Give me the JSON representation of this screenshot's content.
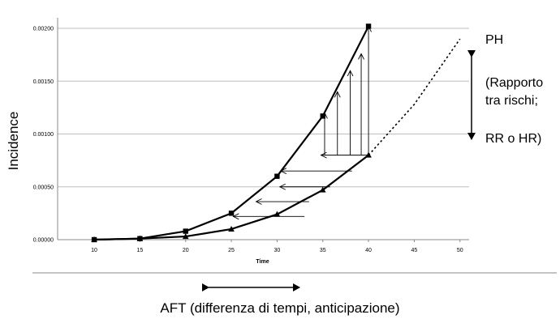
{
  "chart_data": {
    "type": "line",
    "xlabel": "Time",
    "ylabel": "Incidence",
    "x": [
      10,
      15,
      20,
      25,
      30,
      35,
      40
    ],
    "xticks": [
      10,
      15,
      20,
      25,
      30,
      35,
      40,
      45,
      50
    ],
    "yticks": [
      "0.00000",
      "0.00050",
      "0.00100",
      "0.00150",
      "0.00200"
    ],
    "xlim": [
      6,
      51
    ],
    "ylim": [
      0,
      0.0021
    ],
    "grid": true,
    "series": [
      {
        "marker": "square",
        "color": "#000000",
        "values": [
          0.0,
          1e-05,
          8e-05,
          0.00025,
          0.0006,
          0.00117,
          0.00202
        ]
      },
      {
        "marker": "triangle",
        "color": "#000000",
        "values": [
          0.0,
          1e-05,
          3e-05,
          0.0001,
          0.00024,
          0.00047,
          0.0008
        ]
      }
    ],
    "extension": {
      "style": "dotted",
      "x": [
        40,
        45,
        50
      ],
      "values": [
        0.0008,
        0.00128,
        0.0019
      ]
    },
    "horizontal_arrows": [
      {
        "y": 0.00022,
        "x_from": 33,
        "x_to": 25.2
      },
      {
        "y": 0.00036,
        "x_from": 33.5,
        "x_to": 27.7
      },
      {
        "y": 0.0005,
        "x_from": 35.8,
        "x_to": 30.3
      },
      {
        "y": 0.00065,
        "x_from": 38.2,
        "x_to": 30.4
      },
      {
        "y": 0.0008,
        "x_from": 40,
        "x_to": 34.8
      }
    ],
    "vertical_arrows": [
      {
        "x": 35.2,
        "y_from": 0.0008,
        "y_to": 0.0012
      },
      {
        "x": 36.6,
        "y_from": 0.0008,
        "y_to": 0.0014
      },
      {
        "x": 38,
        "y_from": 0.0008,
        "y_to": 0.0016
      },
      {
        "x": 39.2,
        "y_from": 0.0008,
        "y_to": 0.00176
      },
      {
        "x": 40,
        "y_from": 0.0008,
        "y_to": 0.00202
      }
    ]
  },
  "annotations": {
    "ph_label": "PH",
    "ph_line2": "(Rapporto",
    "ph_line3": "tra rischi;",
    "ph_line4": "RR o HR)",
    "aft_caption": "AFT  (differenza di tempi, anticipazione)"
  }
}
